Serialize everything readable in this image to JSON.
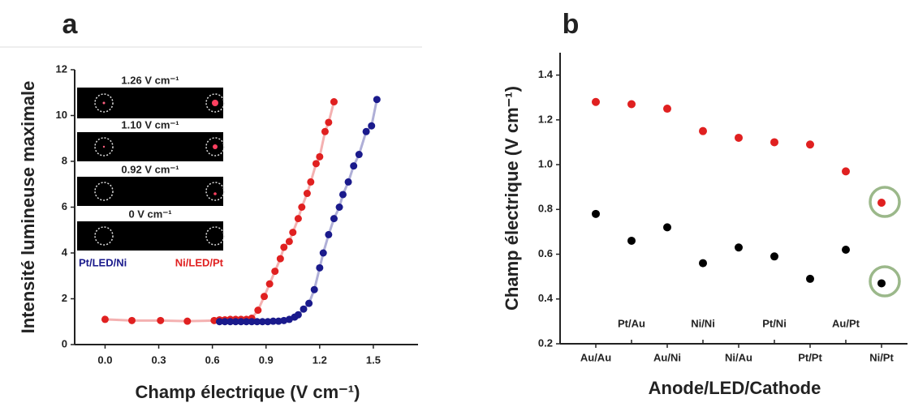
{
  "chart_data": [
    {
      "type": "line",
      "label": "a",
      "xlabel": "Champ électrique (V cm⁻¹)",
      "ylabel": "Intensité lumineuse maximale",
      "xlim": [
        -0.17,
        1.75
      ],
      "xticks": [
        {
          "value": 0,
          "label": "0.0"
        },
        0.3,
        0.6,
        0.9,
        1.2,
        1.5
      ],
      "ylim": [
        0,
        12
      ],
      "yticks": [
        0,
        2,
        4,
        6,
        8,
        10,
        12
      ],
      "annotations": [
        "1.26 V cm⁻¹",
        "1.10 V cm⁻¹",
        "0.92 V cm⁻¹",
        "0 V cm⁻¹"
      ],
      "inset_labels": [
        "Pt/LED/Ni",
        "Ni/LED/Pt"
      ],
      "series": [
        {
          "color": "#e02020",
          "x": [
            0,
            0.15,
            0.31,
            0.46,
            0.61,
            0.64,
            0.67,
            0.7,
            0.73,
            0.76,
            0.79,
            0.82,
            0.855,
            0.89,
            0.92,
            0.95,
            0.98,
            1.0,
            1.03,
            1.05,
            1.08,
            1.1,
            1.13,
            1.15,
            1.18,
            1.2,
            1.23,
            1.25,
            1.28
          ],
          "values": [
            1.1,
            1.05,
            1.05,
            1.02,
            1.05,
            1.08,
            1.08,
            1.1,
            1.1,
            1.1,
            1.1,
            1.15,
            1.5,
            2.1,
            2.65,
            3.2,
            3.75,
            4.25,
            4.5,
            4.9,
            5.5,
            6.0,
            6.6,
            7.1,
            7.9,
            8.2,
            9.3,
            9.7,
            10.6
          ]
        },
        {
          "color": "#1a1a8c",
          "x": [
            0.64,
            0.67,
            0.7,
            0.73,
            0.76,
            0.79,
            0.82,
            0.85,
            0.88,
            0.91,
            0.94,
            0.97,
            1.0,
            1.03,
            1.06,
            1.08,
            1.11,
            1.14,
            1.17,
            1.2,
            1.22,
            1.25,
            1.28,
            1.31,
            1.33,
            1.36,
            1.39,
            1.42,
            1.46,
            1.49,
            1.52
          ],
          "values": [
            1.0,
            1.0,
            1.0,
            1.0,
            1.0,
            1.0,
            1.0,
            1.0,
            1.0,
            1.0,
            1.02,
            1.02,
            1.05,
            1.1,
            1.2,
            1.3,
            1.55,
            1.8,
            2.4,
            3.35,
            4.0,
            4.8,
            5.5,
            6.0,
            6.55,
            7.1,
            7.8,
            8.3,
            9.3,
            9.55,
            10.7
          ]
        }
      ]
    },
    {
      "type": "scatter",
      "label": "b",
      "xlabel": "Anode/LED/Cathode",
      "ylabel": "Champ électrique (V cm⁻¹)",
      "categories": [
        "Au/Au",
        "Pt/Au",
        "Au/Ni",
        "Ni/Ni",
        "Ni/Au",
        "Pt/Ni",
        "Pt/Pt",
        "Au/Pt",
        "Ni/Pt"
      ],
      "ylim": [
        0.2,
        1.5
      ],
      "yticks": [
        0.2,
        0.4,
        0.6,
        0.8,
        {
          "value": 1,
          "label": "1.0"
        },
        1.2,
        1.4
      ],
      "series": [
        {
          "color": "#e02020",
          "values": [
            1.28,
            1.27,
            1.25,
            1.15,
            1.12,
            1.1,
            1.09,
            0.97,
            0.83
          ]
        },
        {
          "color": "#000000",
          "values": [
            0.78,
            0.66,
            0.72,
            0.56,
            0.63,
            0.59,
            0.49,
            0.62,
            0.47
          ]
        }
      ]
    }
  ]
}
